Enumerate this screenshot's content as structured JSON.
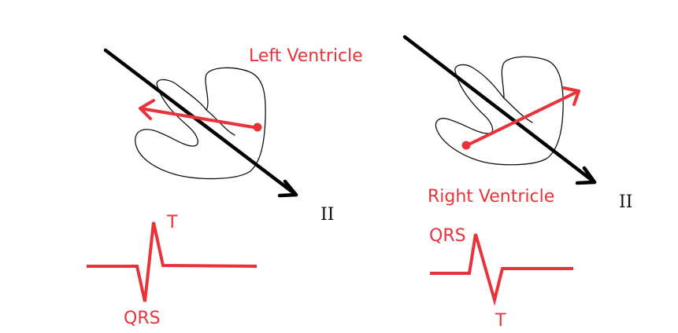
{
  "colors": {
    "red": "#e8333b",
    "black": "#000000"
  },
  "panels": [
    {
      "heart_label": "Left Ventricle",
      "lead_label": "II",
      "trace_labels": {
        "upper": "T",
        "lower": "QRS"
      }
    },
    {
      "heart_label": "Right Ventricle",
      "lead_label": "II",
      "trace_labels": {
        "upper": "QRS",
        "lower": "T"
      }
    }
  ]
}
